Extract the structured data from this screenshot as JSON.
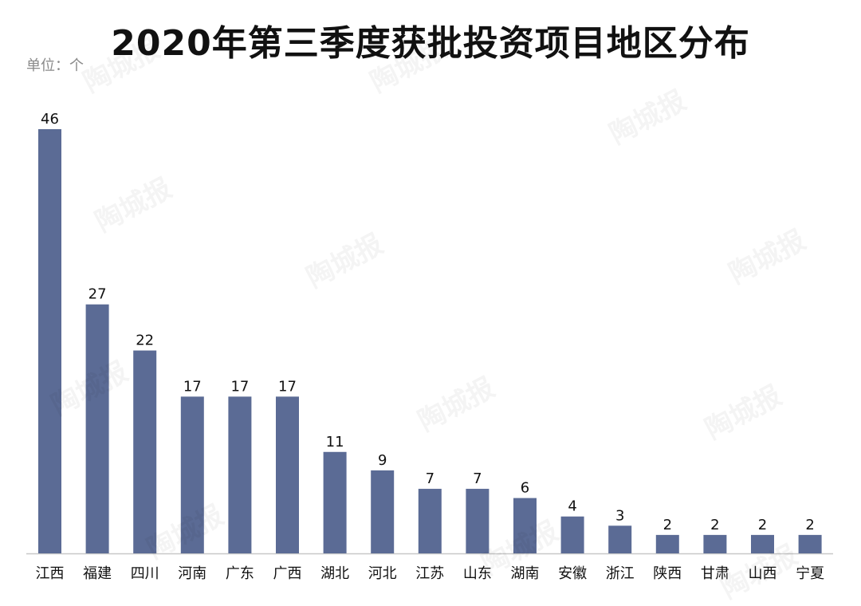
{
  "title": "2020年第三季度获批投资项目地区分布",
  "unit_label": "单位：个",
  "watermark_text": "陶城报",
  "chart_data": {
    "type": "bar",
    "title": "2020年第三季度获批投资项目地区分布",
    "unit": "单位：个",
    "categories": [
      "江西",
      "福建",
      "四川",
      "河南",
      "广东",
      "广西",
      "湖北",
      "河北",
      "江苏",
      "山东",
      "湖南",
      "安徽",
      "浙江",
      "陕西",
      "甘肃",
      "山西",
      "宁夏"
    ],
    "values": [
      46,
      27,
      22,
      17,
      17,
      17,
      11,
      9,
      7,
      7,
      6,
      4,
      3,
      2,
      2,
      2,
      2
    ],
    "ylim": [
      0,
      46
    ],
    "grid": false,
    "legend": "none",
    "bar_color": "#5b6b95",
    "axis_color": "#c8c8c8",
    "label_color": "#111111"
  }
}
